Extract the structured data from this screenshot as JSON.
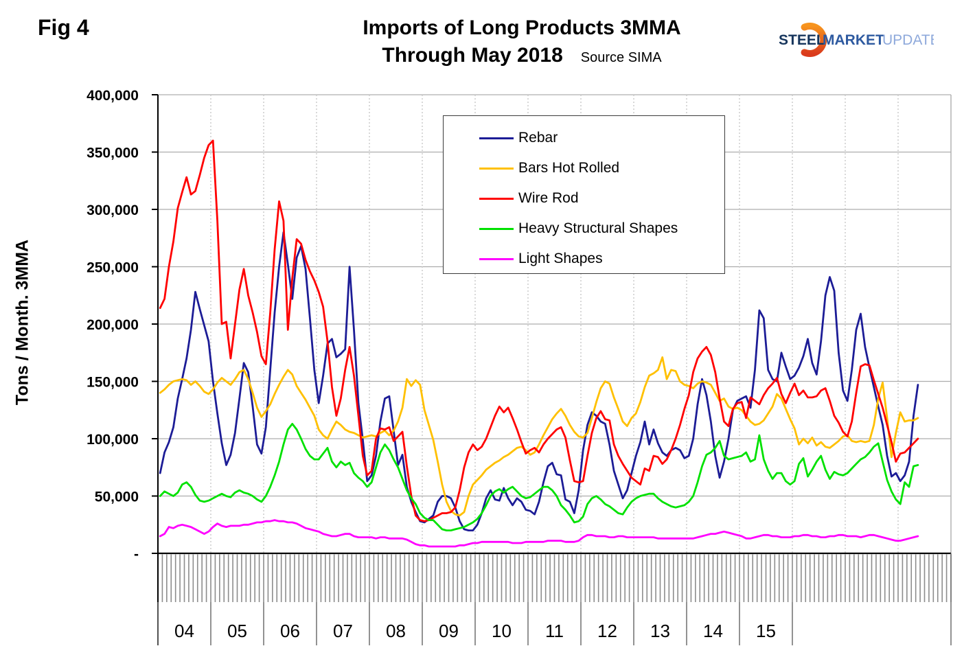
{
  "header": {
    "fig_label": "Fig 4",
    "title_line1": "Imports of Long Products 3MMA",
    "title_line2": "Through May 2018",
    "source": "Source SIMA"
  },
  "logo": {
    "word1": "STEEL",
    "word2": "MARKET",
    "word3": "UPDATE",
    "word1_color": "#17365D",
    "word2_color": "#2E5AA0",
    "word3_color": "#8EA9DB",
    "swoosh_color_top": "#F7941E",
    "swoosh_color_bottom": "#DA3B1C"
  },
  "y_axis": {
    "title": "Tons / Month. 3MMA",
    "tick_labels": [
      "400,000",
      "350,000",
      "300,000",
      "250,000",
      "200,000",
      "150,000",
      "100,000",
      "50,000",
      "-"
    ],
    "tick_values": [
      400000,
      350000,
      300000,
      250000,
      200000,
      150000,
      100000,
      50000,
      0
    ]
  },
  "x_axis": {
    "year_labels": [
      "04",
      "05",
      "06",
      "07",
      "08",
      "09",
      "10",
      "11",
      "12",
      "13",
      "14",
      "15"
    ]
  },
  "chart_data": {
    "type": "line",
    "title": "Imports of Long Products 3MMA Through May 2018",
    "xlabel": "",
    "ylabel": "Tons / Month. 3MMA",
    "ylim": [
      0,
      400000
    ],
    "x_start": "2004-01",
    "x_end": "2018-05",
    "frequency": "monthly",
    "axis_months_total": 180,
    "grid": {
      "horizontal": "solid gray every 50,000",
      "vertical": "dotted gray at each year boundary"
    },
    "legend_position": "upper center box",
    "series": [
      {
        "name": "Rebar",
        "color": "#1C1C96",
        "values": [
          70000,
          88000,
          97000,
          110000,
          135000,
          152000,
          170000,
          195000,
          228000,
          213000,
          199000,
          185000,
          150000,
          122000,
          96000,
          77000,
          86000,
          105000,
          135000,
          166000,
          158000,
          128000,
          95000,
          87000,
          110000,
          160000,
          210000,
          250000,
          280000,
          252000,
          222000,
          258000,
          268000,
          248000,
          205000,
          160000,
          131000,
          155000,
          183000,
          187000,
          171000,
          174000,
          178000,
          250000,
          195000,
          131000,
          99000,
          63000,
          68000,
          85000,
          115000,
          135000,
          137000,
          107000,
          77000,
          86000,
          58000,
          45000,
          36000,
          28000,
          27000,
          30000,
          33000,
          45000,
          50000,
          50000,
          48000,
          40000,
          28000,
          21000,
          20000,
          20000,
          25000,
          35000,
          48000,
          55000,
          47000,
          46000,
          57000,
          48000,
          42000,
          48000,
          45000,
          38000,
          37000,
          34000,
          45000,
          62000,
          76000,
          79000,
          69000,
          68000,
          47000,
          45000,
          35000,
          55000,
          90000,
          112000,
          123000,
          120000,
          115000,
          113000,
          95000,
          72000,
          60000,
          48000,
          55000,
          70000,
          85000,
          97000,
          115000,
          95000,
          108000,
          96000,
          88000,
          85000,
          90000,
          92000,
          90000,
          83000,
          85000,
          100000,
          130000,
          152000,
          138000,
          115000,
          85000,
          66000,
          80000,
          100000,
          125000,
          133000,
          135000,
          137000,
          127000,
          160000,
          212000,
          205000,
          160000,
          152000,
          150000,
          175000,
          163000,
          152000,
          155000,
          162000,
          172000,
          187000,
          166000,
          156000,
          185000,
          225000,
          241000,
          229000,
          175000,
          142000,
          133000,
          160000,
          195000,
          209000,
          180000,
          162000,
          145000,
          128000,
          112000,
          85000,
          67000,
          70000,
          63000,
          68000,
          80000,
          120000,
          147000
        ]
      },
      {
        "name": "Bars Hot Rolled",
        "color": "#FFC000",
        "values": [
          140000,
          143000,
          147000,
          150000,
          151000,
          152000,
          151000,
          147000,
          150000,
          146000,
          141000,
          139000,
          143000,
          149000,
          153000,
          150000,
          147000,
          152000,
          158000,
          160000,
          152000,
          140000,
          127000,
          119000,
          124000,
          130000,
          139000,
          147000,
          154000,
          160000,
          156000,
          146000,
          140000,
          134000,
          127000,
          120000,
          108000,
          103000,
          100000,
          108000,
          115000,
          112000,
          108000,
          106000,
          105000,
          103000,
          101000,
          102000,
          103000,
          102000,
          105000,
          107000,
          103000,
          107000,
          115000,
          127000,
          152000,
          146000,
          151000,
          147000,
          125000,
          112000,
          99000,
          80000,
          60000,
          45000,
          37000,
          34000,
          33000,
          36000,
          50000,
          60000,
          64000,
          68000,
          73000,
          76000,
          79000,
          81000,
          84000,
          86000,
          89000,
          92000,
          93000,
          90000,
          86000,
          88000,
          95000,
          103000,
          110000,
          117000,
          122000,
          126000,
          120000,
          112000,
          106000,
          102000,
          101000,
          105000,
          118000,
          132000,
          144000,
          150000,
          148000,
          136000,
          126000,
          115000,
          111000,
          118000,
          122000,
          132000,
          145000,
          155000,
          157000,
          160000,
          171000,
          152000,
          160000,
          159000,
          150000,
          147000,
          146000,
          144000,
          148000,
          150000,
          149000,
          147000,
          140000,
          133000,
          135000,
          128000,
          126000,
          127000,
          125000,
          120000,
          115000,
          112000,
          113000,
          116000,
          122000,
          128000,
          139000,
          135000,
          126000,
          117000,
          109000,
          95000,
          100000,
          96000,
          101000,
          94000,
          97000,
          93000,
          92000,
          95000,
          98000,
          102000,
          103000,
          98000,
          97000,
          98000,
          97000,
          98000,
          112000,
          135000,
          149000,
          118000,
          84000,
          105000,
          123000,
          115000,
          116000,
          116000,
          118000
        ]
      },
      {
        "name": "Wire Rod",
        "color": "#FF0000",
        "values": [
          214000,
          222000,
          250000,
          272000,
          301000,
          315000,
          328000,
          313000,
          316000,
          330000,
          345000,
          356000,
          360000,
          290000,
          200000,
          202000,
          170000,
          200000,
          230000,
          248000,
          225000,
          210000,
          193000,
          172000,
          165000,
          210000,
          265000,
          307000,
          290000,
          195000,
          240000,
          274000,
          270000,
          256000,
          246000,
          238000,
          228000,
          215000,
          185000,
          145000,
          120000,
          135000,
          160000,
          180000,
          155000,
          120000,
          85000,
          68000,
          72000,
          100000,
          109000,
          108000,
          110000,
          98000,
          102000,
          106000,
          76000,
          50000,
          33000,
          29000,
          28000,
          29000,
          31000,
          33000,
          35000,
          35000,
          36000,
          40000,
          55000,
          75000,
          88000,
          95000,
          90000,
          93000,
          100000,
          110000,
          120000,
          128000,
          123000,
          127000,
          118000,
          108000,
          97000,
          87000,
          90000,
          92000,
          88000,
          95000,
          100000,
          104000,
          108000,
          110000,
          101000,
          81000,
          63000,
          62000,
          63000,
          85000,
          105000,
          118000,
          124000,
          117000,
          116000,
          95000,
          85000,
          78000,
          72000,
          66000,
          63000,
          60000,
          74000,
          72000,
          85000,
          84000,
          78000,
          82000,
          90000,
          100000,
          112000,
          126000,
          138000,
          158000,
          170000,
          176000,
          180000,
          173000,
          158000,
          135000,
          115000,
          111000,
          126000,
          131000,
          132000,
          118000,
          136000,
          133000,
          130000,
          138000,
          144000,
          148000,
          153000,
          139000,
          131000,
          140000,
          148000,
          138000,
          142000,
          136000,
          136000,
          137000,
          142000,
          144000,
          133000,
          120000,
          114000,
          106000,
          102000,
          115000,
          140000,
          163000,
          165000,
          164000,
          151000,
          139000,
          127000,
          112000,
          97000,
          80000,
          87000,
          88000,
          92000,
          96000,
          100000
        ]
      },
      {
        "name": "Heavy Structural Shapes",
        "color": "#00E100",
        "values": [
          50000,
          54000,
          52000,
          50000,
          53000,
          60000,
          62000,
          58000,
          51000,
          46000,
          45000,
          46000,
          48000,
          50000,
          52000,
          50000,
          49000,
          53000,
          55000,
          53000,
          52000,
          50000,
          47000,
          45000,
          50000,
          58000,
          68000,
          80000,
          95000,
          108000,
          113000,
          108000,
          100000,
          91000,
          85000,
          82000,
          82000,
          87000,
          92000,
          80000,
          75000,
          80000,
          77000,
          79000,
          70000,
          66000,
          63000,
          58000,
          62000,
          75000,
          88000,
          95000,
          90000,
          82000,
          75000,
          65000,
          55000,
          48000,
          43000,
          35000,
          31000,
          29000,
          29000,
          25000,
          21000,
          20000,
          20000,
          21000,
          22000,
          23000,
          25000,
          27000,
          30000,
          35000,
          42000,
          50000,
          54000,
          56000,
          53000,
          56000,
          58000,
          54000,
          50000,
          48000,
          49000,
          52000,
          55000,
          58000,
          58000,
          55000,
          50000,
          42000,
          38000,
          33000,
          27000,
          28000,
          32000,
          43000,
          48000,
          50000,
          47000,
          43000,
          41000,
          38000,
          35000,
          34000,
          40000,
          45000,
          48000,
          50000,
          51000,
          52000,
          52000,
          48000,
          45000,
          43000,
          41000,
          40000,
          41000,
          42000,
          45000,
          50000,
          62000,
          76000,
          86000,
          88000,
          92000,
          98000,
          85000,
          82000,
          83000,
          84000,
          85000,
          88000,
          80000,
          82000,
          103000,
          82000,
          72000,
          65000,
          70000,
          70000,
          63000,
          60000,
          63000,
          78000,
          83000,
          67000,
          73000,
          80000,
          85000,
          73000,
          65000,
          71000,
          69000,
          68000,
          70000,
          74000,
          78000,
          82000,
          84000,
          88000,
          93000,
          96000,
          80000,
          64000,
          54000,
          47000,
          43000,
          62000,
          58000,
          76000,
          77000
        ]
      },
      {
        "name": "Light Shapes",
        "color": "#FF00FF",
        "values": [
          15000,
          17000,
          23000,
          22000,
          24000,
          25000,
          24000,
          23000,
          21000,
          19000,
          17000,
          19000,
          23000,
          26000,
          24000,
          23000,
          24000,
          24000,
          24000,
          25000,
          25000,
          26000,
          27000,
          27000,
          28000,
          28000,
          29000,
          28000,
          28000,
          27000,
          27000,
          26000,
          24000,
          22000,
          21000,
          20000,
          19000,
          17000,
          16000,
          15000,
          15000,
          16000,
          17000,
          17000,
          15000,
          14000,
          14000,
          14000,
          14000,
          13000,
          14000,
          14000,
          13000,
          13000,
          13000,
          13000,
          12000,
          10000,
          8000,
          7000,
          7000,
          6000,
          6000,
          6000,
          6000,
          6000,
          6000,
          6000,
          7000,
          7000,
          8000,
          9000,
          9000,
          10000,
          10000,
          10000,
          10000,
          10000,
          10000,
          10000,
          9000,
          9000,
          9000,
          10000,
          10000,
          10000,
          10000,
          10000,
          11000,
          11000,
          11000,
          11000,
          10000,
          10000,
          10000,
          11000,
          14000,
          16000,
          16000,
          15000,
          15000,
          15000,
          14000,
          14000,
          15000,
          15000,
          14000,
          14000,
          14000,
          14000,
          14000,
          14000,
          14000,
          13000,
          13000,
          13000,
          13000,
          13000,
          13000,
          13000,
          13000,
          13000,
          14000,
          15000,
          16000,
          17000,
          17000,
          18000,
          19000,
          18000,
          17000,
          16000,
          15000,
          13000,
          13000,
          14000,
          15000,
          16000,
          16000,
          15000,
          15000,
          14000,
          14000,
          14000,
          15000,
          15000,
          16000,
          16000,
          15000,
          15000,
          14000,
          14000,
          15000,
          15000,
          16000,
          16000,
          15000,
          15000,
          15000,
          14000,
          15000,
          16000,
          16000,
          15000,
          14000,
          13000,
          12000,
          11000,
          11000,
          12000,
          13000,
          14000,
          15000
        ]
      }
    ]
  }
}
